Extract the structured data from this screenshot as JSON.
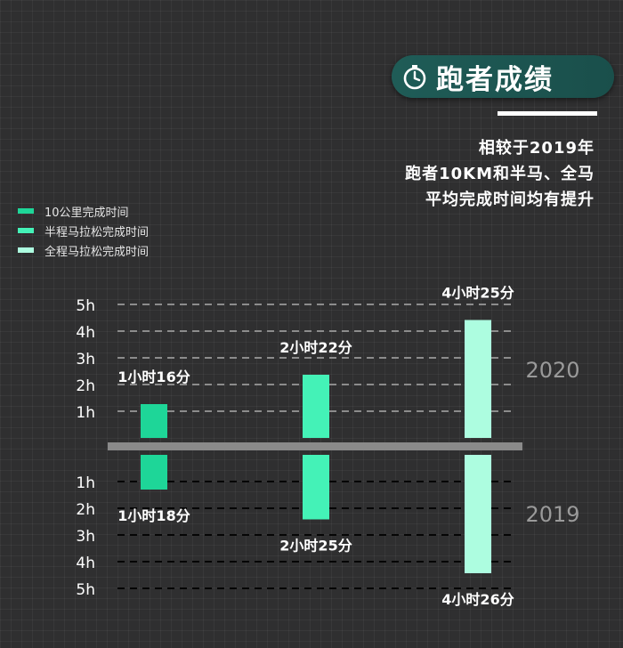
{
  "header": {
    "title": "跑者成绩",
    "icon": "stopwatch-icon",
    "subtitle_lines": [
      "相较于2019年",
      "跑者10KM和半马、全马",
      "平均完成时间均有提升"
    ]
  },
  "colors": {
    "10km": "#1ed698",
    "half": "#44f2b7",
    "full": "#adfde0",
    "divider": "#8a8a8a",
    "pill": "#1d5753"
  },
  "chart_data": {
    "type": "bar",
    "categories": [
      "10公里完成时间",
      "半程马拉松完成时间",
      "全程马拉松完成时间"
    ],
    "series": [
      {
        "name": "2020",
        "values": [
          1.2667,
          2.3667,
          4.4167
        ],
        "labels": [
          "1小时16分",
          "2小时22分",
          "4小时25分"
        ]
      },
      {
        "name": "2019",
        "values": [
          1.3,
          2.4167,
          4.4333
        ],
        "labels": [
          "1小时18分",
          "2小时25分",
          "4小时26分"
        ]
      }
    ],
    "ytick_labels": [
      "1h",
      "2h",
      "3h",
      "4h",
      "5h"
    ],
    "ylim": [
      0,
      5
    ],
    "legend_position": "top-left",
    "grid": true
  }
}
